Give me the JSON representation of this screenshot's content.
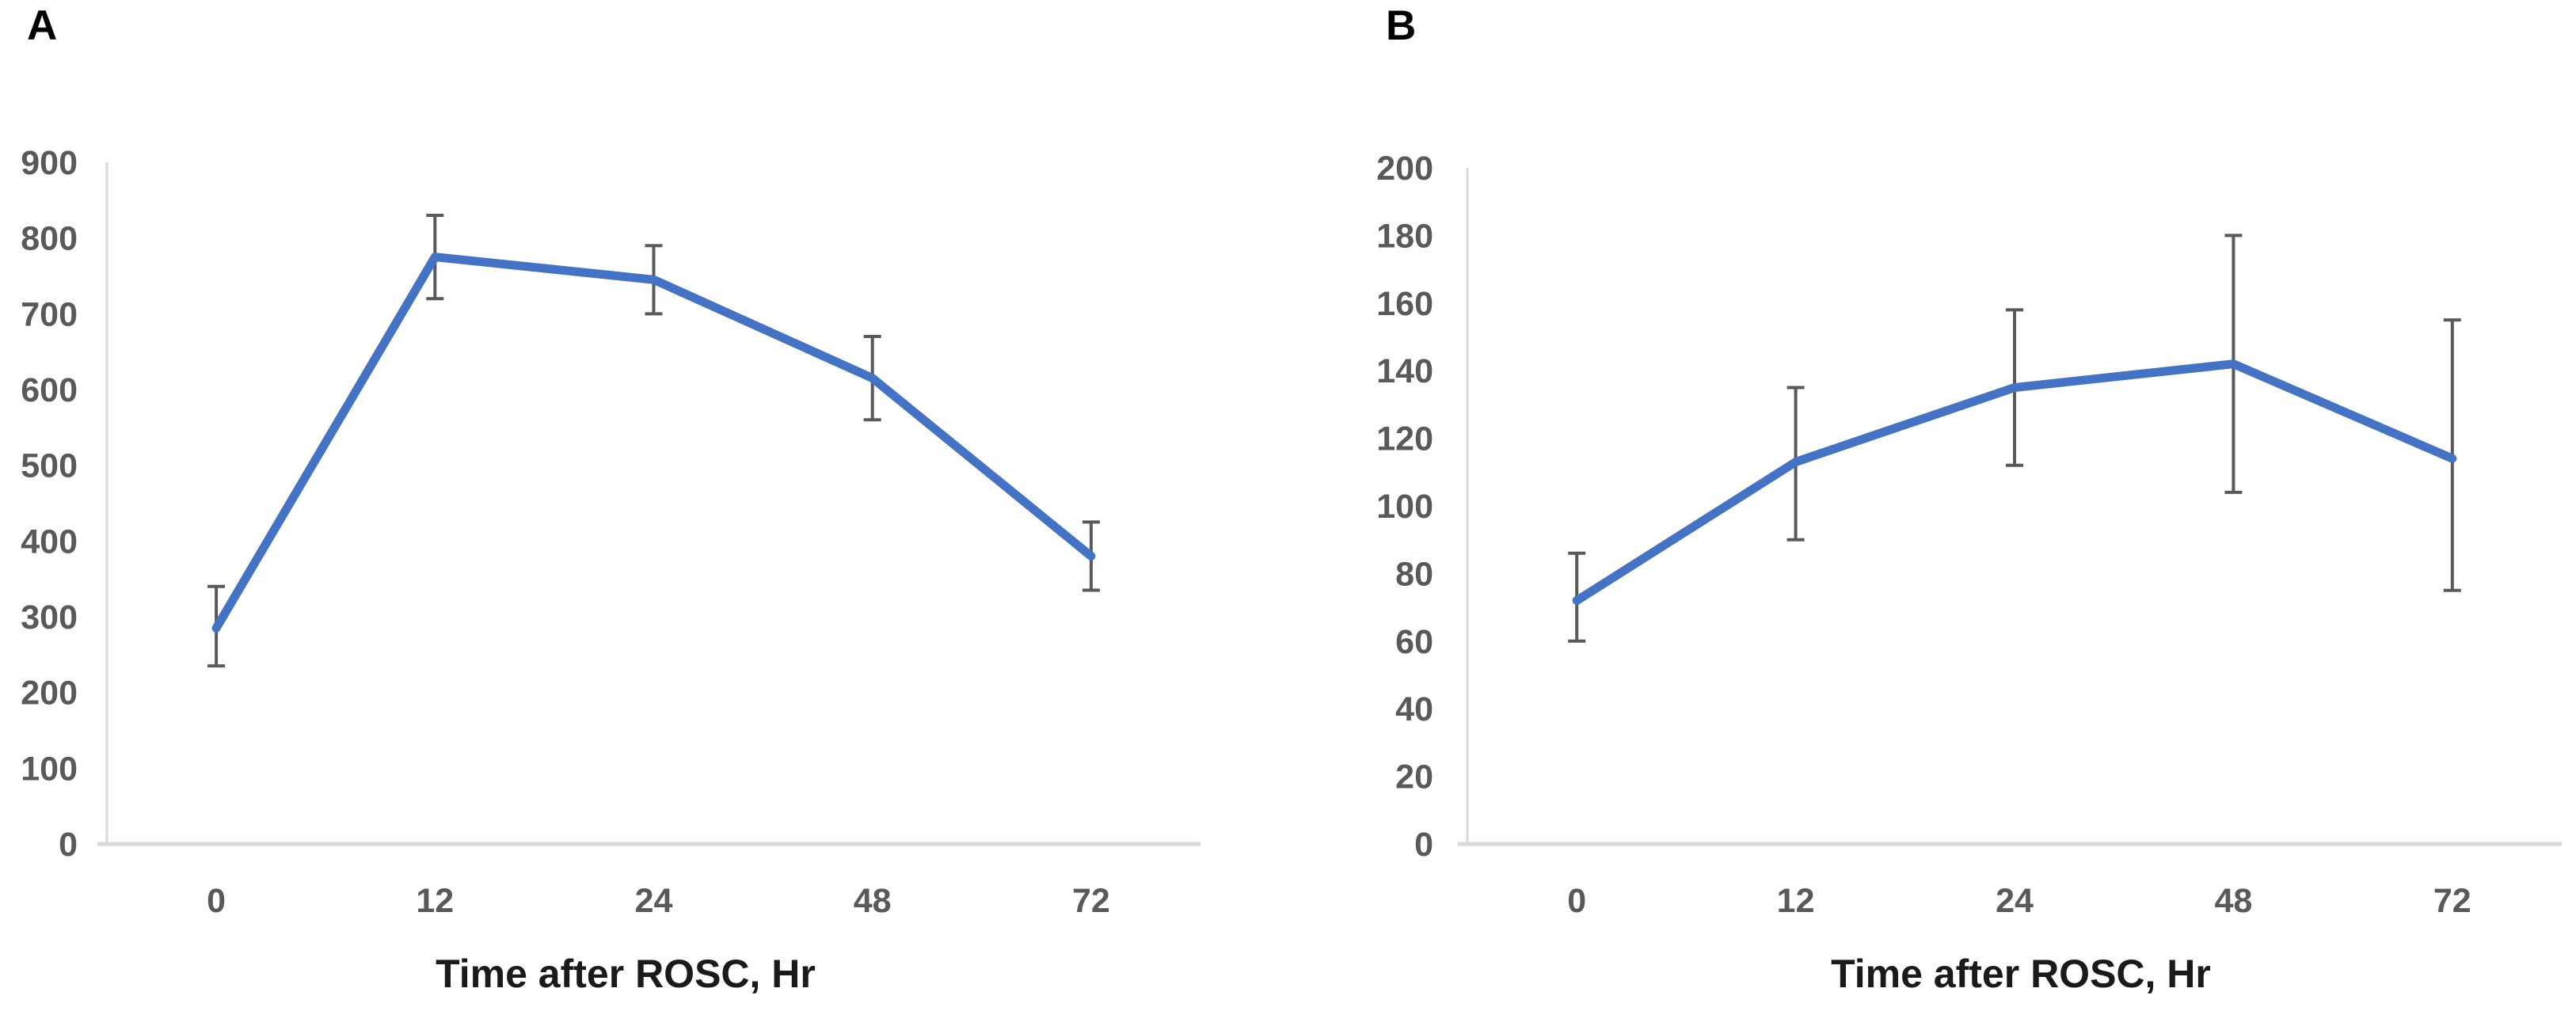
{
  "figure": {
    "background": "#ffffff",
    "series_line_color": "#4472C4",
    "error_bar_color": "#595959",
    "axis_line_color": "#D9D9D9",
    "tick_label_color": "#595959",
    "axis_title_color": "#1a1a1a",
    "panel_letter_color": "#000000"
  },
  "chart_data": [
    {
      "type": "line",
      "panel_label": "A",
      "categories": [
        "0",
        "12",
        "24",
        "48",
        "72"
      ],
      "values": [
        285,
        775,
        745,
        615,
        380
      ],
      "error_low": [
        235,
        720,
        700,
        560,
        335
      ],
      "error_high": [
        340,
        830,
        790,
        670,
        425
      ],
      "title": "",
      "xlabel": "Time after ROSC, Hr",
      "ylabel": "",
      "ylim": [
        0,
        900
      ],
      "ytick_step": 100,
      "ytick_labels": [
        "0",
        "100",
        "200",
        "300",
        "400",
        "500",
        "600",
        "700",
        "800",
        "900"
      ],
      "grid": false,
      "legend": "none",
      "error_bars": true
    },
    {
      "type": "line",
      "panel_label": "B",
      "categories": [
        "0",
        "12",
        "24",
        "48",
        "72"
      ],
      "values": [
        72,
        113,
        135,
        142,
        114
      ],
      "error_low": [
        60,
        90,
        112,
        104,
        75
      ],
      "error_high": [
        86,
        135,
        158,
        180,
        155
      ],
      "title": "",
      "xlabel": "Time after ROSC, Hr",
      "ylabel": "",
      "ylim": [
        0,
        200
      ],
      "ytick_step": 20,
      "ytick_labels": [
        "0",
        "20",
        "40",
        "60",
        "80",
        "100",
        "120",
        "140",
        "160",
        "180",
        "200"
      ],
      "grid": false,
      "legend": "none",
      "error_bars": true
    }
  ]
}
